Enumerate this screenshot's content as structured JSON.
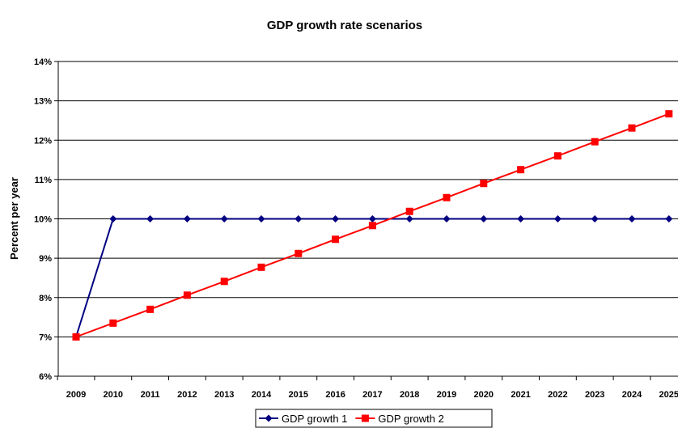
{
  "chart_data": {
    "type": "line",
    "title": "GDP growth rate scenarios",
    "xlabel": "",
    "ylabel": "Percent per year",
    "categories": [
      "2009",
      "2010",
      "2011",
      "2012",
      "2013",
      "2014",
      "2015",
      "2016",
      "2017",
      "2018",
      "2019",
      "2020",
      "2021",
      "2022",
      "2023",
      "2024",
      "2025"
    ],
    "y_ticks": [
      "6%",
      "7%",
      "8%",
      "9%",
      "10%",
      "11%",
      "12%",
      "13%",
      "14%"
    ],
    "ylim": [
      6,
      14
    ],
    "grid": "horizontal",
    "legend_position": "bottom",
    "series": [
      {
        "name": "GDP growth 1",
        "color": "#000080",
        "marker": "diamond",
        "values": [
          7,
          10,
          10,
          10,
          10,
          10,
          10,
          10,
          10,
          10,
          10,
          10,
          10,
          10,
          10,
          10,
          10
        ]
      },
      {
        "name": "GDP growth 2",
        "color": "#ff0000",
        "marker": "square",
        "values": [
          7,
          7.35,
          7.7,
          8.06,
          8.41,
          8.77,
          9.12,
          9.48,
          9.83,
          10.19,
          10.54,
          10.9,
          11.25,
          11.6,
          11.96,
          12.31,
          12.67
        ]
      }
    ]
  }
}
